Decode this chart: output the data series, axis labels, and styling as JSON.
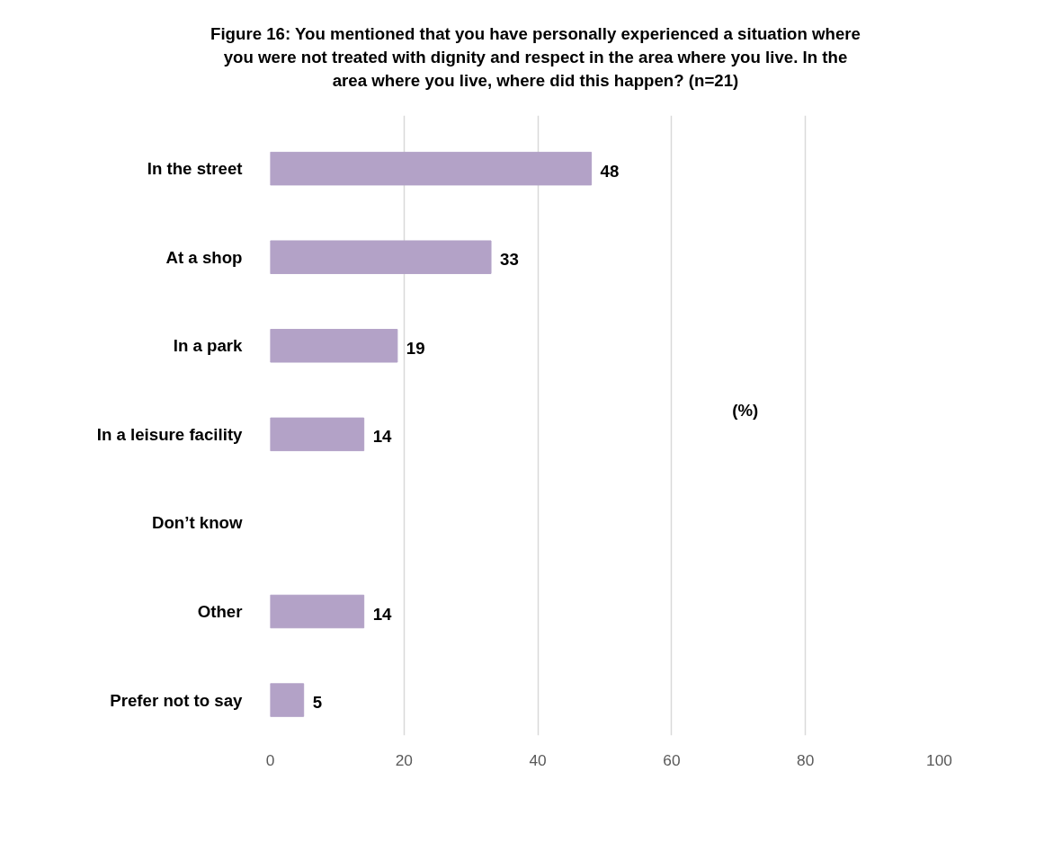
{
  "chart_data": {
    "type": "bar",
    "orientation": "horizontal",
    "title": "Figure 16: You mentioned that you have personally experienced a situation where you were not treated with dignity and respect in the area where you live. In the area where you live, where did this happen? (n=21)",
    "categories": [
      "In the street",
      "At a shop",
      "In a park",
      "In a leisure facility",
      "Don’t know",
      "Other",
      "Prefer not to say"
    ],
    "values": [
      48,
      33,
      19,
      14,
      null,
      14,
      5
    ],
    "color": "#b3a2c7",
    "xlim": [
      0,
      100
    ],
    "xticks": [
      0,
      20,
      40,
      60,
      80,
      100
    ],
    "grid": "x",
    "data_labels": true,
    "annotations": [
      "(%)"
    ]
  }
}
